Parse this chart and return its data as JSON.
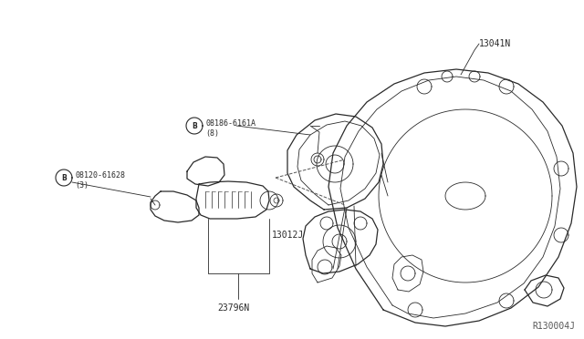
{
  "bg_color": "#ffffff",
  "line_color": "#2a2a2a",
  "label_color": "#2a2a2a",
  "fig_width": 6.4,
  "fig_height": 3.72,
  "dpi": 100,
  "diagram_id": "R130004J",
  "label_13041N": "13041N",
  "label_part1": "08186-6161A",
  "label_part1b": "(8)",
  "label_part2": "08120-61628",
  "label_part2b": "(3)",
  "label_13012J": "13012J",
  "label_23796N": "23796N"
}
